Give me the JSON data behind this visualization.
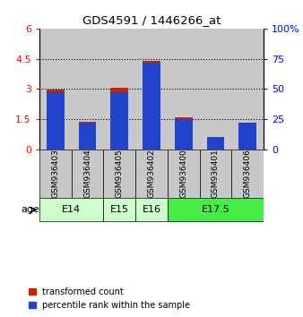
{
  "title": "GDS4591 / 1446266_at",
  "samples": [
    "GSM936403",
    "GSM936404",
    "GSM936405",
    "GSM936402",
    "GSM936400",
    "GSM936401",
    "GSM936406"
  ],
  "transformed_counts": [
    2.95,
    1.35,
    3.05,
    4.4,
    1.6,
    0.15,
    1.3
  ],
  "percentile_ranks_raw": [
    47,
    22,
    47,
    72,
    25,
    10,
    22
  ],
  "bar_color_red": "#cc2200",
  "bar_color_blue": "#2244cc",
  "sample_bg_color": "#c8c8c8",
  "ylim_left": [
    0,
    6
  ],
  "ylim_right": [
    0,
    100
  ],
  "yticks_left": [
    0,
    1.5,
    3.0,
    4.5,
    6.0
  ],
  "yticks_right": [
    0,
    25,
    50,
    75,
    100
  ],
  "ytick_labels_left": [
    "0",
    "1.5",
    "3",
    "4.5",
    "6"
  ],
  "ytick_labels_right": [
    "0",
    "25",
    "50",
    "75",
    "100%"
  ],
  "bar_width": 0.55,
  "legend_red": "transformed count",
  "legend_blue": "percentile rank within the sample",
  "age_row_label": "age",
  "age_groups": [
    {
      "label": "E14",
      "start": 0,
      "end": 1,
      "color": "#ccffcc"
    },
    {
      "label": "E15",
      "start": 2,
      "end": 2,
      "color": "#ccffcc"
    },
    {
      "label": "E16",
      "start": 3,
      "end": 3,
      "color": "#ccffcc"
    },
    {
      "label": "E17.5",
      "start": 4,
      "end": 6,
      "color": "#44ee44"
    }
  ],
  "grid_lines": [
    1.5,
    3.0,
    4.5
  ]
}
